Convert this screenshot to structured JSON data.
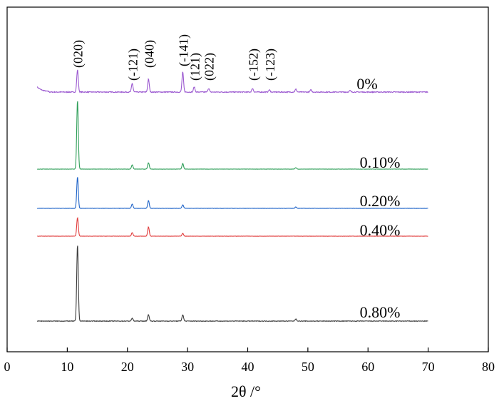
{
  "chart_data": {
    "type": "line",
    "xlabel": "2θ /°",
    "ylabel": "",
    "xlim": [
      0,
      80
    ],
    "xticks": [
      0,
      10,
      20,
      30,
      40,
      50,
      60,
      70,
      80
    ],
    "y_ticks_shown": false,
    "grid": false,
    "legend": "labels placed at the right end of each trace",
    "x_range_measured": [
      5,
      70
    ],
    "series": [
      {
        "name": "0%",
        "color": "#9b59d0",
        "peaks": [
          {
            "x": 11.7,
            "h": 31
          },
          {
            "x": 20.8,
            "h": 12
          },
          {
            "x": 23.5,
            "h": 18
          },
          {
            "x": 29.2,
            "h": 28
          },
          {
            "x": 31.1,
            "h": 7
          },
          {
            "x": 33.5,
            "h": 5
          },
          {
            "x": 40.8,
            "h": 5
          },
          {
            "x": 43.6,
            "h": 3
          },
          {
            "x": 48.0,
            "h": 4
          },
          {
            "x": 50.5,
            "h": 3
          },
          {
            "x": 57.0,
            "h": 2
          }
        ]
      },
      {
        "name": "0.10%",
        "color": "#2e9e58",
        "peaks": [
          {
            "x": 11.7,
            "h": 96
          },
          {
            "x": 20.8,
            "h": 6
          },
          {
            "x": 23.5,
            "h": 9
          },
          {
            "x": 29.2,
            "h": 8
          },
          {
            "x": 48.0,
            "h": 2
          }
        ]
      },
      {
        "name": "0.20%",
        "color": "#1e63c8",
        "peaks": [
          {
            "x": 11.7,
            "h": 44
          },
          {
            "x": 20.8,
            "h": 6
          },
          {
            "x": 23.5,
            "h": 11
          },
          {
            "x": 29.2,
            "h": 5
          },
          {
            "x": 48.0,
            "h": 2
          }
        ]
      },
      {
        "name": "0.40%",
        "color": "#e03b3b",
        "peaks": [
          {
            "x": 11.7,
            "h": 26
          },
          {
            "x": 20.8,
            "h": 5
          },
          {
            "x": 23.5,
            "h": 13
          },
          {
            "x": 29.2,
            "h": 4
          }
        ]
      },
      {
        "name": "0.80%",
        "color": "#3a3a3a",
        "peaks": [
          {
            "x": 11.7,
            "h": 107
          },
          {
            "x": 20.8,
            "h": 4
          },
          {
            "x": 23.5,
            "h": 9
          },
          {
            "x": 29.2,
            "h": 9
          },
          {
            "x": 48.0,
            "h": 3
          }
        ]
      }
    ],
    "peak_labels": [
      {
        "text": "(020)",
        "x": 11.7
      },
      {
        "text": "(-121)",
        "x": 20.8
      },
      {
        "text": "(040)",
        "x": 23.5
      },
      {
        "text": "(-141)",
        "x": 29.2
      },
      {
        "text": "(121)",
        "x": 31.1
      },
      {
        "text": "(022)",
        "x": 33.5
      },
      {
        "text": "(-152)",
        "x": 40.8
      },
      {
        "text": "(-123)",
        "x": 43.6
      }
    ]
  }
}
